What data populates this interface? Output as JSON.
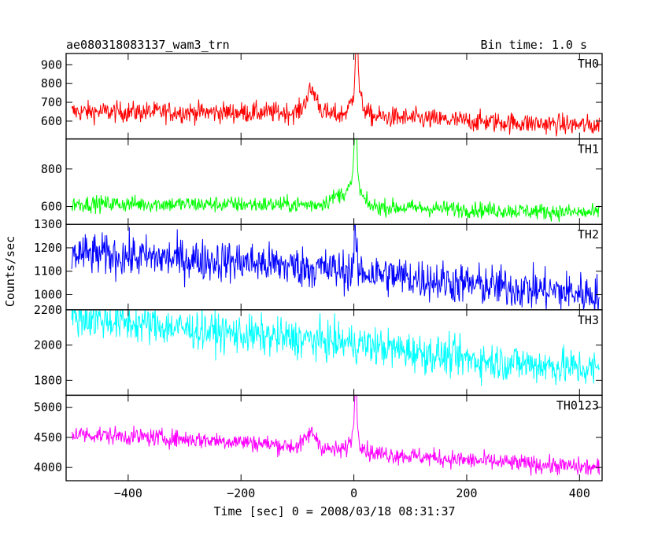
{
  "header": {
    "title": "ae080318083137_wam3_trn",
    "bin_time": "Bin time: 1.0 s"
  },
  "chart_data": {
    "type": "line",
    "title": "ae080318083137_wam3_trn",
    "xlabel": "Time [sec] 0 = 2008/03/18 08:31:37",
    "ylabel": "Counts/sec",
    "xlim": [
      -510,
      440
    ],
    "xticks": [
      -400,
      -200,
      0,
      200,
      400
    ],
    "x_start": -500,
    "x_end": 435,
    "bin_sec": 1.0,
    "grid": false,
    "panels": [
      {
        "name": "TH0",
        "color": "#ff0000",
        "ylim": [
          505,
          960
        ],
        "yticks": [
          600,
          700,
          800,
          900
        ],
        "trend": [
          [
            -500,
            650
          ],
          [
            -100,
            645
          ],
          [
            200,
            600
          ],
          [
            435,
            575
          ]
        ],
        "noise": 28,
        "features": [
          {
            "t": -75,
            "amp": 120,
            "width": 10
          },
          {
            "t": 5,
            "amp": 330,
            "width": 2.5
          },
          {
            "t": 5,
            "amp": 110,
            "width": 10
          }
        ]
      },
      {
        "name": "TH1",
        "color": "#00ff00",
        "ylim": [
          505,
          960
        ],
        "yticks": [
          600,
          800
        ],
        "trend": [
          [
            -500,
            615
          ],
          [
            -100,
            610
          ],
          [
            200,
            585
          ],
          [
            435,
            565
          ]
        ],
        "noise": 22,
        "features": [
          {
            "t": -20,
            "amp": 60,
            "width": 20
          },
          {
            "t": 3,
            "amp": 330,
            "width": 2.5
          },
          {
            "t": 3,
            "amp": 90,
            "width": 10
          }
        ]
      },
      {
        "name": "TH2",
        "color": "#0000ff",
        "ylim": [
          935,
          1300
        ],
        "yticks": [
          1000,
          1100,
          1200,
          1300
        ],
        "trend": [
          [
            -500,
            1175
          ],
          [
            -200,
            1140
          ],
          [
            0,
            1100
          ],
          [
            200,
            1045
          ],
          [
            435,
            1000
          ]
        ],
        "noise": 45,
        "features": [
          {
            "t": 2,
            "amp": 170,
            "width": 2
          }
        ]
      },
      {
        "name": "TH3",
        "color": "#00ffff",
        "ylim": [
          1715,
          2200
        ],
        "yticks": [
          1800,
          2000,
          2200
        ],
        "trend": [
          [
            -500,
            2160
          ],
          [
            -200,
            2060
          ],
          [
            0,
            2010
          ],
          [
            200,
            1920
          ],
          [
            435,
            1860
          ]
        ],
        "noise": 55,
        "features": []
      },
      {
        "name": "TH0123",
        "color": "#ff00ff",
        "ylim": [
          3780,
          5200
        ],
        "yticks": [
          4000,
          4500,
          5000
        ],
        "trend": [
          [
            -500,
            4560
          ],
          [
            -200,
            4430
          ],
          [
            -60,
            4310
          ],
          [
            20,
            4250
          ],
          [
            200,
            4120
          ],
          [
            435,
            3990
          ]
        ],
        "noise": 75,
        "features": [
          {
            "t": -75,
            "amp": 250,
            "width": 10
          },
          {
            "t": 3,
            "amp": 800,
            "width": 2.5
          },
          {
            "t": 3,
            "amp": 250,
            "width": 10
          }
        ]
      }
    ]
  }
}
